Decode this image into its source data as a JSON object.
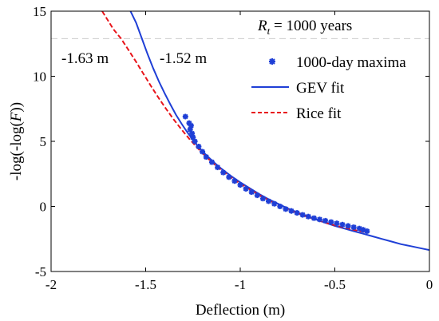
{
  "chart_data": {
    "type": "line",
    "xlabel": "Deflection (m)",
    "ylabel_prefix": "-log(-log(",
    "ylabel_var": "F",
    "ylabel_suffix": "))",
    "xlim": [
      -2,
      0
    ],
    "ylim": [
      -5,
      15
    ],
    "x_ticks": [
      -2,
      -1.5,
      -1,
      -0.5,
      0
    ],
    "x_tick_labels": [
      "-2",
      "-1.5",
      "-1",
      "-0.5",
      "0"
    ],
    "y_ticks": [
      -5,
      0,
      5,
      10,
      15
    ],
    "y_tick_labels": [
      "-5",
      "0",
      "5",
      "10",
      "15"
    ],
    "grid": false,
    "legend_position": "top-right",
    "return_period_line": {
      "y": 12.89,
      "label_var": "R",
      "label_sub": "t",
      "label_rest": " = 1000 years",
      "color": "#cccccc"
    },
    "annotations": [
      {
        "text": "-1.63 m",
        "x": -1.63
      },
      {
        "text": "-1.52 m",
        "x": -1.52
      }
    ],
    "series": [
      {
        "name": "1000-day maxima",
        "kind": "scatter",
        "color": "#1f3fd6",
        "x": [
          -1.29,
          -1.27,
          -1.265,
          -1.26,
          -1.255,
          -1.25,
          -1.24,
          -1.22,
          -1.2,
          -1.18,
          -1.15,
          -1.12,
          -1.09,
          -1.06,
          -1.03,
          -1.0,
          -0.97,
          -0.94,
          -0.91,
          -0.88,
          -0.85,
          -0.82,
          -0.79,
          -0.76,
          -0.73,
          -0.7,
          -0.67,
          -0.64,
          -0.61,
          -0.58,
          -0.55,
          -0.52,
          -0.49,
          -0.46,
          -0.43,
          -0.4,
          -0.37,
          -0.35,
          -0.33
        ],
        "y": [
          6.9,
          6.4,
          5.9,
          6.2,
          5.6,
          5.3,
          5.0,
          4.6,
          4.2,
          3.8,
          3.4,
          3.0,
          2.6,
          2.25,
          1.95,
          1.65,
          1.35,
          1.1,
          0.85,
          0.6,
          0.4,
          0.2,
          0.0,
          -0.2,
          -0.35,
          -0.5,
          -0.65,
          -0.78,
          -0.9,
          -1.0,
          -1.1,
          -1.2,
          -1.3,
          -1.4,
          -1.5,
          -1.6,
          -1.7,
          -1.8,
          -1.9
        ]
      },
      {
        "name": "GEV fit",
        "kind": "line",
        "style": "solid",
        "color": "#1f3fd6",
        "x": [
          -1.58,
          -1.55,
          -1.52,
          -1.49,
          -1.46,
          -1.43,
          -1.4,
          -1.37,
          -1.34,
          -1.31,
          -1.28,
          -1.25,
          -1.22,
          -1.18,
          -1.14,
          -1.1,
          -1.05,
          -1.0,
          -0.95,
          -0.9,
          -0.85,
          -0.8,
          -0.75,
          -0.7,
          -0.65,
          -0.6,
          -0.55,
          -0.5,
          -0.45,
          -0.4,
          -0.35,
          -0.3,
          -0.25,
          -0.2,
          -0.15,
          -0.1,
          -0.05,
          0.0
        ],
        "y": [
          15.0,
          14.1,
          12.89,
          11.7,
          10.6,
          9.6,
          8.7,
          7.85,
          7.05,
          6.35,
          5.7,
          5.1,
          4.55,
          3.95,
          3.4,
          2.9,
          2.35,
          1.85,
          1.4,
          0.95,
          0.55,
          0.2,
          -0.15,
          -0.45,
          -0.75,
          -1.0,
          -1.25,
          -1.5,
          -1.7,
          -1.9,
          -2.1,
          -2.3,
          -2.5,
          -2.7,
          -2.9,
          -3.05,
          -3.2,
          -3.35
        ]
      },
      {
        "name": "Rice fit",
        "kind": "line",
        "style": "dashed",
        "color": "#e8141a",
        "x": [
          -1.73,
          -1.7,
          -1.67,
          -1.63,
          -1.59,
          -1.55,
          -1.51,
          -1.47,
          -1.43,
          -1.39,
          -1.35,
          -1.31,
          -1.27,
          -1.23,
          -1.19,
          -1.15,
          -1.1,
          -1.05,
          -1.0,
          -0.95,
          -0.9,
          -0.85,
          -0.8,
          -0.75,
          -0.7,
          -0.65,
          -0.6,
          -0.55,
          -0.5,
          -0.45,
          -0.4,
          -0.35,
          -0.33
        ],
        "y": [
          15.0,
          14.3,
          13.6,
          12.89,
          12.0,
          11.1,
          10.15,
          9.2,
          8.3,
          7.45,
          6.65,
          5.9,
          5.2,
          4.55,
          3.95,
          3.4,
          2.8,
          2.25,
          1.75,
          1.3,
          0.88,
          0.48,
          0.12,
          -0.2,
          -0.5,
          -0.78,
          -1.02,
          -1.25,
          -1.45,
          -1.63,
          -1.8,
          -1.95,
          -2.0
        ]
      }
    ]
  }
}
